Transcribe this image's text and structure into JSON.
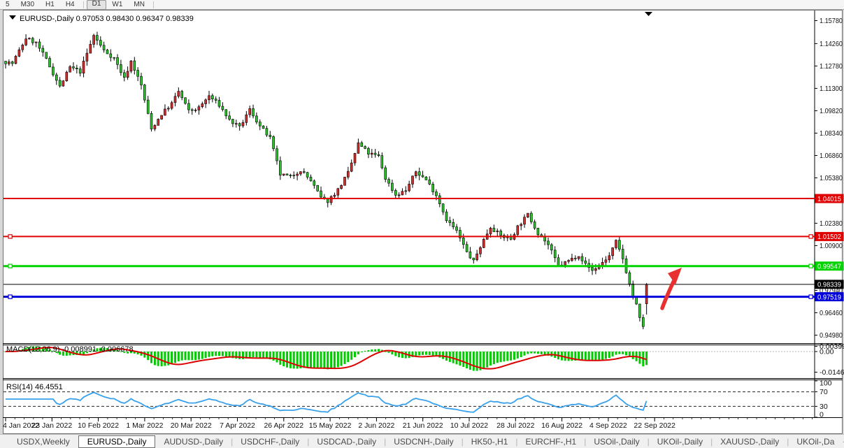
{
  "toolbar": {
    "buttons": [
      "5",
      "M30",
      "H1",
      "H4",
      "D1",
      "W1",
      "MN"
    ],
    "active": "D1"
  },
  "window": {
    "title_symbol": "EURUSD-,Daily",
    "ohlc_text": "0.97053 0.98430 0.96347 0.98339"
  },
  "chart_data": {
    "type": "candlestick",
    "symbol": "EURUSD-",
    "timeframe": "Daily",
    "bars": 190,
    "last_bar": {
      "open": 0.97053,
      "high": 0.9843,
      "low": 0.96347,
      "close": 0.98339
    },
    "y_ticks": [
      1.1578,
      1.1426,
      1.1278,
      1.113,
      1.0982,
      1.0834,
      1.0686,
      1.0538,
      1.039,
      1.0238,
      1.009,
      0.9942,
      0.9794,
      0.9646,
      0.9498
    ],
    "x_labels": [
      "4 Jan 2022",
      "23 Jan 2022",
      "10 Feb 2022",
      "1 Mar 2022",
      "20 Mar 2022",
      "7 Apr 2022",
      "26 Apr 2022",
      "15 May 2022",
      "2 Jun 2022",
      "21 Jun 2022",
      "10 Jul 2022",
      "28 Jul 2022",
      "16 Aug 2022",
      "4 Sep 2022",
      "22 Sep 2022"
    ],
    "levels": [
      {
        "price": 1.04015,
        "label": "1.04015",
        "color": "#e10000",
        "width": 2,
        "handles": false
      },
      {
        "price": 1.01502,
        "label": "1.01502",
        "color": "#e10000",
        "width": 2,
        "handles": true
      },
      {
        "price": 0.99547,
        "label": "0.99547",
        "color": "#00d300",
        "width": 3,
        "handles": true
      },
      {
        "price": 0.98339,
        "label": "0.98339",
        "color": "#000000",
        "width": 1,
        "handles": false
      },
      {
        "price": 0.97519,
        "label": "0.97519",
        "color": "#0000db",
        "width": 3,
        "handles": true
      }
    ],
    "price_path": [
      [
        0,
        1.131
      ],
      [
        3,
        1.1295
      ],
      [
        7,
        1.1462
      ],
      [
        10,
        1.143
      ],
      [
        13,
        1.132
      ],
      [
        17,
        1.114
      ],
      [
        20,
        1.127
      ],
      [
        23,
        1.124
      ],
      [
        27,
        1.148
      ],
      [
        30,
        1.138
      ],
      [
        33,
        1.133
      ],
      [
        36,
        1.1195
      ],
      [
        38,
        1.131
      ],
      [
        41,
        1.115
      ],
      [
        44,
        1.086
      ],
      [
        47,
        1.096
      ],
      [
        50,
        1.103
      ],
      [
        52,
        1.111
      ],
      [
        55,
        1.098
      ],
      [
        58,
        1.1
      ],
      [
        61,
        1.108
      ],
      [
        64,
        1.102
      ],
      [
        67,
        1.092
      ],
      [
        70,
        1.087
      ],
      [
        73,
        1.099
      ],
      [
        76,
        1.088
      ],
      [
        79,
        1.08
      ],
      [
        82,
        1.056
      ],
      [
        85,
        1.0545
      ],
      [
        88,
        1.059
      ],
      [
        91,
        1.052
      ],
      [
        94,
        1.0405
      ],
      [
        96,
        1.0385
      ],
      [
        99,
        1.046
      ],
      [
        102,
        1.057
      ],
      [
        105,
        1.0765
      ],
      [
        108,
        1.07
      ],
      [
        111,
        1.068
      ],
      [
        113,
        1.0535
      ],
      [
        116,
        1.0425
      ],
      [
        119,
        1.0455
      ],
      [
        122,
        1.058
      ],
      [
        125,
        1.0525
      ],
      [
        128,
        1.0425
      ],
      [
        131,
        1.0265
      ],
      [
        134,
        1.0185
      ],
      [
        137,
        1.0045
      ],
      [
        139,
        0.9985
      ],
      [
        141,
        1.0085
      ],
      [
        144,
        1.0215
      ],
      [
        147,
        1.0155
      ],
      [
        150,
        1.0135
      ],
      [
        152,
        1.0215
      ],
      [
        155,
        1.0295
      ],
      [
        158,
        1.0175
      ],
      [
        161,
        1.0095
      ],
      [
        164,
        0.9955
      ],
      [
        167,
        0.999
      ],
      [
        170,
        1.003
      ],
      [
        172,
        0.9965
      ],
      [
        174,
        0.9925
      ],
      [
        176,
        0.996
      ],
      [
        179,
        1.002
      ],
      [
        181,
        1.0115
      ],
      [
        183,
        1.0005
      ],
      [
        185,
        0.9835
      ],
      [
        186,
        0.9755
      ],
      [
        187,
        0.9695
      ],
      [
        188,
        0.9605
      ],
      [
        189,
        0.956
      ],
      [
        190,
        0.9834
      ]
    ],
    "colors": {
      "bull": "#d22c2c",
      "bear": "#27c327",
      "wick": "#000000",
      "outline": "#000000"
    },
    "indicators": {
      "macd": {
        "label": "MACD(12,26,9)",
        "values_text": "-0.008991 -0.006678",
        "fast": 12,
        "slow": 26,
        "signal": 9,
        "hist_color": "#00cc00",
        "signal_color": "#dd0000",
        "axis_labels": [
          "0.00399",
          "0.00",
          "-0.01469"
        ],
        "axis_values": [
          0.00399,
          0.0,
          -0.01469
        ]
      },
      "rsi": {
        "label": "RSI(14)",
        "value_text": "46.4551",
        "period": 14,
        "color": "#39a0ec",
        "axis_levels": [
          100,
          70,
          30,
          0
        ]
      }
    },
    "annotations": [
      {
        "type": "arrow-up-right",
        "color": "#e93030"
      }
    ]
  },
  "tabs": {
    "items": [
      "USDX,Weekly",
      "EURUSD-,Daily",
      "AUDUSD-,Daily",
      "USDCHF-,Daily",
      "USDCAD-,Daily",
      "USDCNH-,Daily",
      "HK50-,H1",
      "EURCHF-,H1",
      "USOil-,Daily",
      "UKOil-,Daily",
      "XAUUSD-,Daily",
      "UKOil-,Da"
    ],
    "active": "EURUSD-,Daily",
    "scroll_left": "◄",
    "scroll_right": "►"
  }
}
